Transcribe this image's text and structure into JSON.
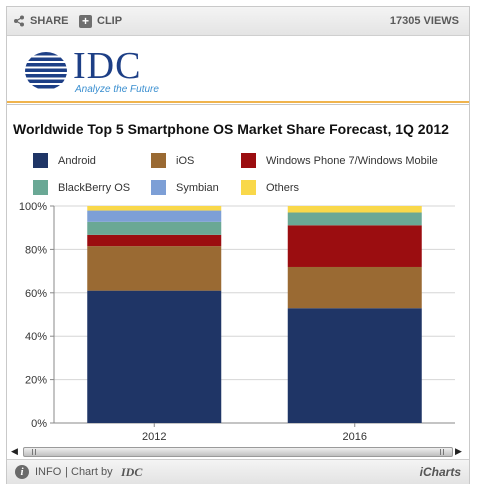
{
  "toolbar": {
    "share_label": "SHARE",
    "clip_label": "CLIP",
    "clip_icon": "+",
    "views_label": "17305 VIEWS"
  },
  "branding": {
    "logo_text": "IDC",
    "tagline": "Analyze the Future",
    "logo_color": "#1d3f86",
    "accent_line_color": "#f0b44d"
  },
  "footer": {
    "info_icon": "i",
    "info_label": "INFO",
    "separator": "|",
    "chart_by_label": "Chart by",
    "chart_by_name": "IDC",
    "provider_label": "iCharts"
  },
  "chart_data": {
    "type": "bar",
    "stacked": true,
    "title": "Worldwide Top 5 Smartphone OS Market Share Forecast, 1Q 2012",
    "categories": [
      "2012",
      "2016"
    ],
    "ylim": [
      0,
      100
    ],
    "yticks": [
      "0%",
      "20%",
      "40%",
      "60%",
      "80%",
      "100%"
    ],
    "grid": true,
    "legend_position": "top",
    "series": [
      {
        "name": "Android",
        "color": "#1f3566",
        "values": [
          61.0,
          52.9
        ]
      },
      {
        "name": "iOS",
        "color": "#9a6a33",
        "values": [
          20.5,
          19.0
        ]
      },
      {
        "name": "Windows Phone 7/Windows Mobile",
        "color": "#9b0d10",
        "values": [
          5.2,
          19.2
        ]
      },
      {
        "name": "BlackBerry OS",
        "color": "#6aa895",
        "values": [
          6.0,
          5.9
        ]
      },
      {
        "name": "Symbian",
        "color": "#7d9fd6",
        "values": [
          5.2,
          0.0
        ]
      },
      {
        "name": "Others",
        "color": "#f9d84a",
        "values": [
          2.1,
          3.0
        ]
      }
    ]
  }
}
